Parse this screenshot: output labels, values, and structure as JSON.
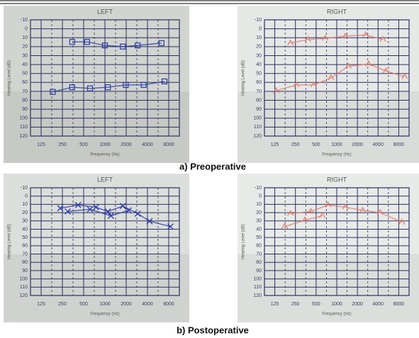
{
  "panels": [
    {
      "label": "LEFT",
      "y_axis_label": "Hearing Level (dB)",
      "x_axis_label": "Frequency (Hz)"
    },
    {
      "label": "RIGHT",
      "y_axis_label": "Hearing Level (dB)",
      "x_axis_label": "Frequency (Hz)"
    },
    {
      "label": "LEFT",
      "y_axis_label": "Hearing Level (dB)",
      "x_axis_label": "Frequency (Hz)"
    },
    {
      "label": "RIGHT",
      "y_axis_label": "Hearing Level (dB)",
      "x_axis_label": "Frequency (Hz)"
    }
  ],
  "level_ticks": [
    -10,
    0,
    10,
    20,
    30,
    40,
    50,
    60,
    70,
    80,
    90,
    100,
    110,
    120
  ],
  "frequency_ticks": [
    125,
    250,
    500,
    1000,
    2000,
    4000,
    8000
  ],
  "captions": [
    "a) Preoperative",
    "b) Postoperative"
  ]
}
